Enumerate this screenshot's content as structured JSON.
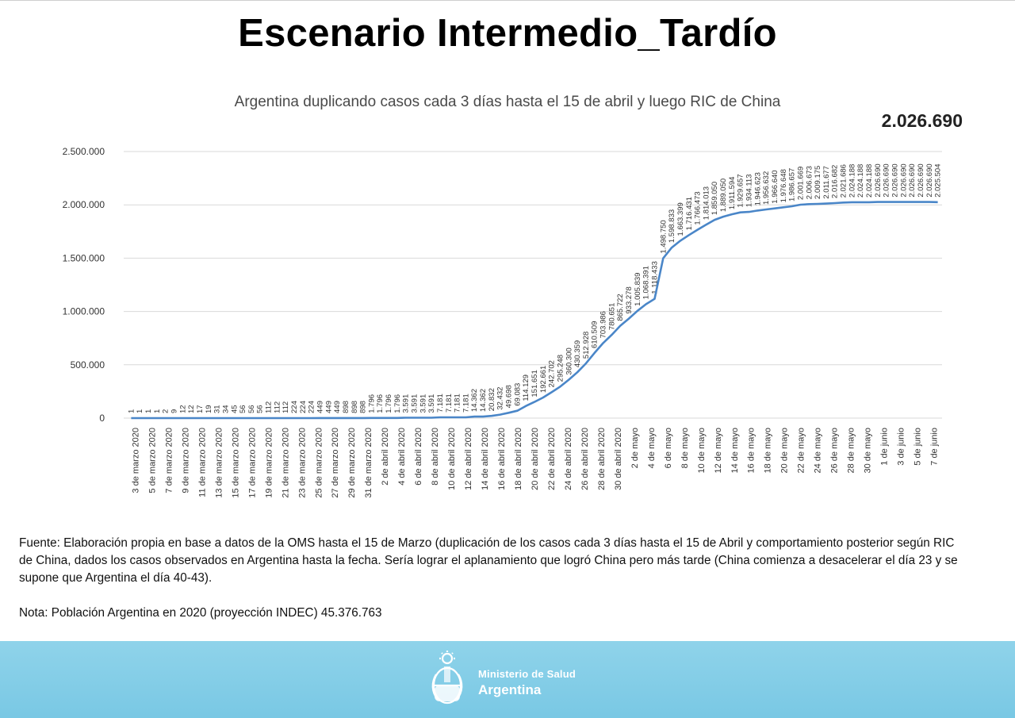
{
  "page": {
    "title": "Escenario Intermedio_Tardío",
    "headline_value": "2.026.690"
  },
  "notes": {
    "source": "Fuente: Elaboración propia en base a datos de la OMS hasta el 15 de Marzo (duplicación de los casos cada 3 días hasta el 15 de Abril y comportamiento posterior según RIC de China, dados los casos observados en Argentina hasta la fecha. Sería lograr el aplanamiento que logró China pero más tarde (China comienza a desacelerar el día 23 y se supone que Argentina el día 40-43).",
    "population": "Nota: Población Argentina en 2020 (proyección INDEC) 45.376.763"
  },
  "footer": {
    "ministry": "Ministerio de Salud",
    "country": "Argentina",
    "emblem_icon": "argentina-coat-of-arms-icon",
    "background_color": "#82cce6"
  },
  "chart_data": {
    "type": "line",
    "title": "Argentina duplicando casos cada 3 días hasta el 15 de abril y luego RIC de China",
    "xlabel": "",
    "ylabel": "",
    "ylim": [
      0,
      2500000
    ],
    "y_ticks": [
      0,
      500000,
      1000000,
      1500000,
      2000000,
      2500000
    ],
    "y_tick_labels": [
      "0",
      "500.000",
      "1.000.000",
      "1.500.000",
      "2.000.000",
      "2.500.000"
    ],
    "grid": true,
    "legend": "none",
    "line_color": "#4a86c8",
    "x_tick_labels": [
      "3 de marzo 2020",
      "5 de marzo 2020",
      "7 de marzo 2020",
      "9 de marzo 2020",
      "11 de marzo 2020",
      "13 de marzo 2020",
      "15 de marzo 2020",
      "17 de marzo 2020",
      "19 de marzo 2020",
      "21 de marzo 2020",
      "23 de marzo 2020",
      "25 de marzo 2020",
      "27 de marzo 2020",
      "29 de marzo 2020",
      "31 de marzo 2020",
      "2 de abril 2020",
      "4 de abril 2020",
      "6 de abril 2020",
      "8 de abril 2020",
      "10 de abril 2020",
      "12 de abril 2020",
      "14 de abril 2020",
      "16 de abril 2020",
      "18 de abril 2020",
      "20 de abril 2020",
      "22 de abril 2020",
      "24 de abril 2020",
      "26 de abril 2020",
      "28 de abril 2020",
      "30 de abril 2020",
      "2 de mayo",
      "4 de mayo",
      "6 de mayo",
      "8 de mayo",
      "10 de mayo",
      "12 de mayo",
      "14 de mayo",
      "16 de mayo",
      "18 de mayo",
      "20 de mayo",
      "22 de mayo",
      "24 de mayo",
      "26 de mayo",
      "28 de mayo",
      "30 de mayo",
      "1 de junio",
      "3 de junio",
      "5 de junio",
      "7 de junio"
    ],
    "series": [
      {
        "values": [
          1,
          1,
          1,
          1,
          2,
          9,
          12,
          12,
          17,
          19,
          31,
          34,
          45,
          56,
          56,
          56,
          112,
          112,
          112,
          224,
          224,
          224,
          449,
          449,
          449,
          898,
          898,
          898,
          1796,
          1796,
          1796,
          1796,
          3591,
          3591,
          3591,
          3591,
          7181,
          7181,
          7181,
          7181,
          14362,
          14362,
          20832,
          32432,
          49698,
          69083,
          114129,
          151651,
          192661,
          242702,
          295248,
          360300,
          430359,
          512928,
          610509,
          703986,
          780651,
          865722,
          933278,
          1005839,
          1068391,
          1118433,
          1498750,
          1598833,
          1663399,
          1716431,
          1766473,
          1814013,
          1859050,
          1889050,
          1911594,
          1929657,
          1934113,
          1946623,
          1956632,
          1966640,
          1976648,
          1986657,
          2001669,
          2006673,
          2009175,
          2011677,
          2016682,
          2021686,
          2024188,
          2024188,
          2024188,
          2026690,
          2026690,
          2026690,
          2026690,
          2026690,
          2026690,
          2026690,
          2025504
        ],
        "labels": [
          "1",
          "1",
          "1",
          "1",
          "2",
          "9",
          "12",
          "12",
          "17",
          "19",
          "31",
          "34",
          "45",
          "56",
          "56",
          "56",
          "112",
          "112",
          "112",
          "224",
          "224",
          "224",
          "449",
          "449",
          "449",
          "898",
          "898",
          "898",
          "1.796",
          "1.796",
          "1.796",
          "1.796",
          "3.591",
          "3.591",
          "3.591",
          "3.591",
          "7.181",
          "7.181",
          "7.181",
          "7.181",
          "14.362",
          "14.362",
          "20.832",
          "32.432",
          "49.698",
          "69.083",
          "114.129",
          "151.651",
          "192.661",
          "242.702",
          "295.248",
          "360.300",
          "430.359",
          "512.928",
          "610.509",
          "703.986",
          "780.651",
          "865.722",
          "933.278",
          "1.005.839",
          "1.068.391",
          "1.118.433",
          "1.498.750",
          "1.598.833",
          "1.663.399",
          "1.716.431",
          "1.766.473",
          "1.814.013",
          "1.859.050",
          "1.889.050",
          "1.911.594",
          "1.929.657",
          "1.934.113",
          "1.946.623",
          "1.956.632",
          "1.966.640",
          "1.976.648",
          "1.986.657",
          "2.001.669",
          "2.006.673",
          "2.009.175",
          "2.011.677",
          "2.016.682",
          "2.021.686",
          "2.024.188",
          "2.024.188",
          "2.024.188",
          "2.026.690",
          "2.026.690",
          "2.026.690",
          "2.026.690",
          "2.026.690",
          "2.026.690",
          "2.026.690",
          "2.025.504"
        ]
      }
    ]
  }
}
